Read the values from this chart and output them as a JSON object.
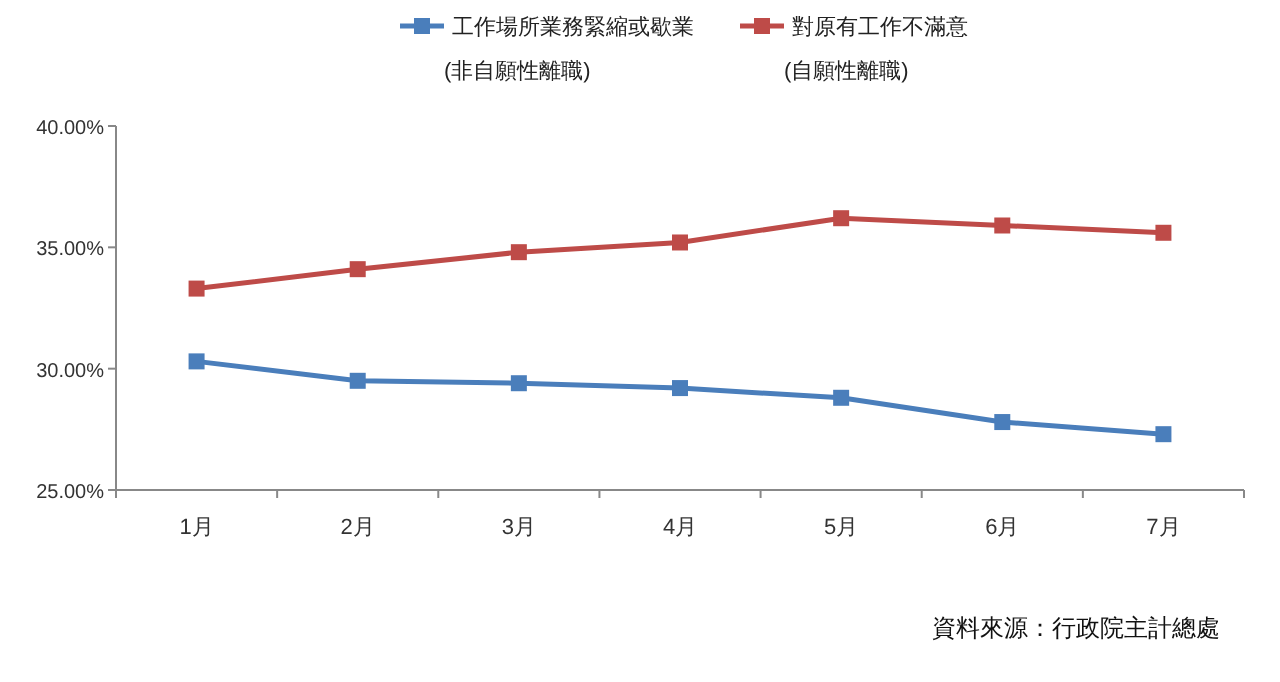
{
  "chart_data": {
    "type": "line",
    "categories": [
      "1月",
      "2月",
      "3月",
      "4月",
      "5月",
      "6月",
      "7月"
    ],
    "series": [
      {
        "name": "工作場所業務緊縮或歇業\n(非自願性離職)",
        "color": "#4a7ebb",
        "values": [
          30.3,
          29.5,
          29.4,
          29.2,
          28.8,
          27.8,
          27.3
        ]
      },
      {
        "name": "對原有工作不滿意\n(自願性離職)",
        "color": "#be4b48",
        "values": [
          33.3,
          34.1,
          34.8,
          35.2,
          36.2,
          35.9,
          35.6
        ]
      }
    ],
    "ylim": [
      25,
      40
    ],
    "yticks": [
      {
        "value": 25,
        "label": "25.00%"
      },
      {
        "value": 30,
        "label": "30.00%"
      },
      {
        "value": 35,
        "label": "35.00%"
      },
      {
        "value": 40,
        "label": "40.00%"
      }
    ],
    "grid": false,
    "legend": "top",
    "marker": "square",
    "line_style": "solid",
    "annotations": [
      "資料來源：行政院主計總處"
    ]
  }
}
